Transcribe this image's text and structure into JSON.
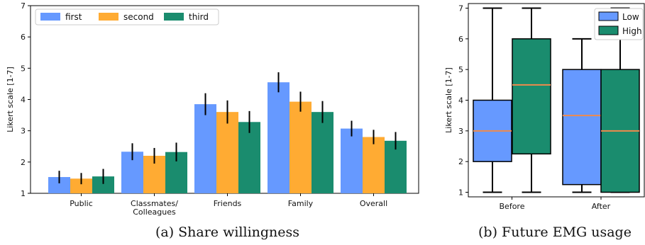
{
  "chart_data": [
    {
      "type": "bar",
      "caption": "(a) Share willingness",
      "ylabel": "Likert scale [1-7]",
      "xlabel": "",
      "ylim": [
        1,
        7
      ],
      "yticks": [
        "1",
        "2",
        "3",
        "4",
        "5",
        "6",
        "7"
      ],
      "categories": [
        "Public",
        "Classmates/\nColleagues",
        "Friends",
        "Family",
        "Overall"
      ],
      "legend_position": "top-left",
      "grid": false,
      "series": [
        {
          "name": "first",
          "color": "#6699ff",
          "values": [
            1.52,
            2.33,
            3.85,
            4.55,
            3.07
          ],
          "errors": [
            0.2,
            0.27,
            0.35,
            0.32,
            0.25
          ]
        },
        {
          "name": "second",
          "color": "#ffab33",
          "values": [
            1.47,
            2.2,
            3.6,
            3.93,
            2.8
          ],
          "errors": [
            0.18,
            0.25,
            0.37,
            0.32,
            0.23
          ]
        },
        {
          "name": "third",
          "color": "#1a8c6e",
          "values": [
            1.54,
            2.32,
            3.28,
            3.6,
            2.68
          ],
          "errors": [
            0.24,
            0.3,
            0.35,
            0.35,
            0.28
          ]
        }
      ]
    },
    {
      "type": "boxplot",
      "caption": "(b) Future EMG usage",
      "ylabel": "Likert scale [1-7]",
      "xlabel": "",
      "ylim": [
        1,
        7
      ],
      "yticks": [
        "1",
        "2",
        "3",
        "4",
        "5",
        "6",
        "7"
      ],
      "categories": [
        "Before",
        "After"
      ],
      "legend_position": "top-right",
      "grid": false,
      "series": [
        {
          "name": "Low",
          "color": "#6699ff",
          "boxes": [
            {
              "min": 1,
              "q1": 2,
              "median": 3,
              "q3": 4,
              "max": 7
            },
            {
              "min": 1,
              "q1": 1.25,
              "median": 3.5,
              "q3": 5,
              "max": 6
            }
          ]
        },
        {
          "name": "High",
          "color": "#1a8c6e",
          "boxes": [
            {
              "min": 1,
              "q1": 2.25,
              "median": 4.5,
              "q3": 6,
              "max": 7
            },
            {
              "min": 1,
              "q1": 1,
              "median": 3,
              "q3": 5,
              "max": 7
            }
          ]
        }
      ]
    }
  ]
}
